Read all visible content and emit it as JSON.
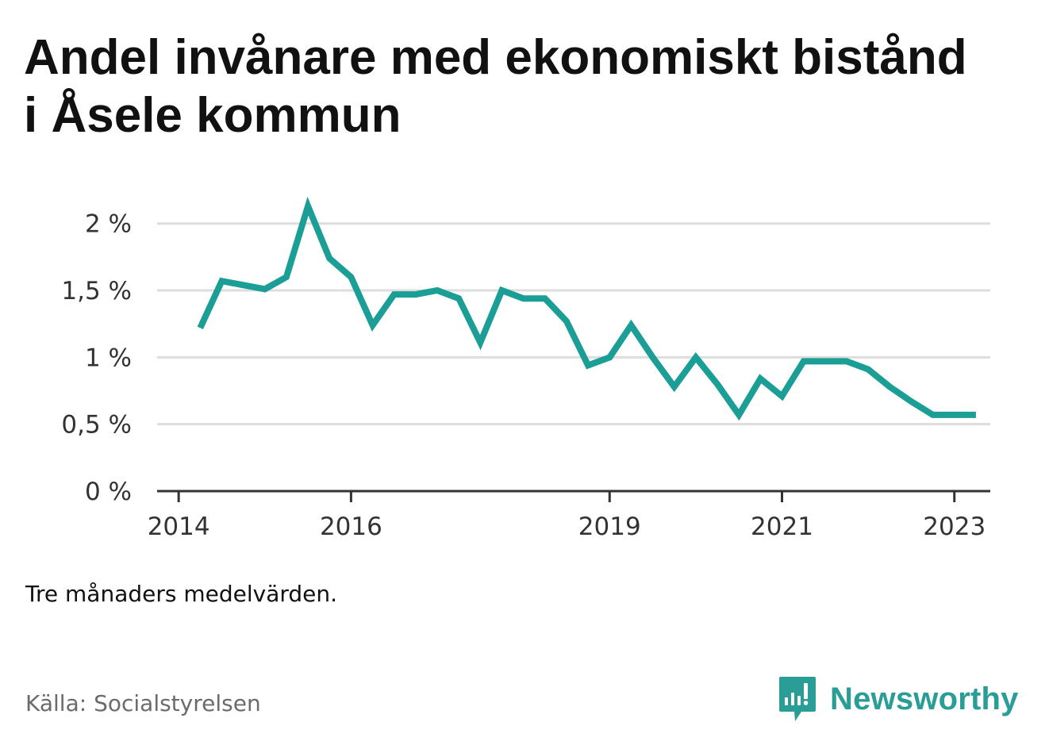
{
  "title": "Andel invånare med ekonomiskt bistånd i Åsele kommun",
  "note": "Tre månaders medelvärden.",
  "source": "Källa: Socialstyrelsen",
  "brand": "Newsworthy",
  "colors": {
    "line": "#1a9e96",
    "grid": "#dddddd",
    "axis": "#333333",
    "brand": "#2a9d96"
  },
  "chart_data": {
    "type": "line",
    "title": "Andel invånare med ekonomiskt bistånd i Åsele kommun",
    "xlabel": "",
    "ylabel": "",
    "y_unit": "%",
    "ylim": [
      0,
      2.2
    ],
    "yticks": [
      0,
      0.5,
      1,
      1.5,
      2
    ],
    "ytick_labels": [
      "0 %",
      "0,5 %",
      "1 %",
      "1,5 %",
      "2 %"
    ],
    "xlim": [
      "2013-10",
      "2023-06"
    ],
    "xticks": [
      "2014-01",
      "2016-01",
      "2019-01",
      "2021-01",
      "2023-01"
    ],
    "xtick_labels": [
      "2014",
      "2016",
      "2019",
      "2021",
      "2023"
    ],
    "grid": true,
    "legend": "none",
    "series": [
      {
        "x": [
          "2014-04",
          "2014-07",
          "2014-10",
          "2015-01",
          "2015-04",
          "2015-07",
          "2015-10",
          "2016-01",
          "2016-04",
          "2016-07",
          "2016-10",
          "2017-01",
          "2017-04",
          "2017-07",
          "2017-10",
          "2018-01",
          "2018-04",
          "2018-07",
          "2018-10",
          "2019-01",
          "2019-04",
          "2019-07",
          "2019-10",
          "2020-01",
          "2020-04",
          "2020-07",
          "2020-10",
          "2021-01",
          "2021-04",
          "2021-07",
          "2021-10",
          "2022-01",
          "2022-04",
          "2022-07",
          "2022-10",
          "2023-01",
          "2023-04"
        ],
        "values": [
          1.22,
          1.57,
          1.54,
          1.51,
          1.6,
          2.13,
          1.74,
          1.6,
          1.24,
          1.47,
          1.47,
          1.5,
          1.44,
          1.11,
          1.5,
          1.44,
          1.44,
          1.27,
          0.94,
          1.0,
          1.24,
          1.0,
          0.78,
          1.0,
          0.8,
          0.57,
          0.84,
          0.71,
          0.97,
          0.97,
          0.97,
          0.91,
          0.78,
          0.67,
          0.57,
          0.57,
          0.57
        ]
      }
    ]
  }
}
